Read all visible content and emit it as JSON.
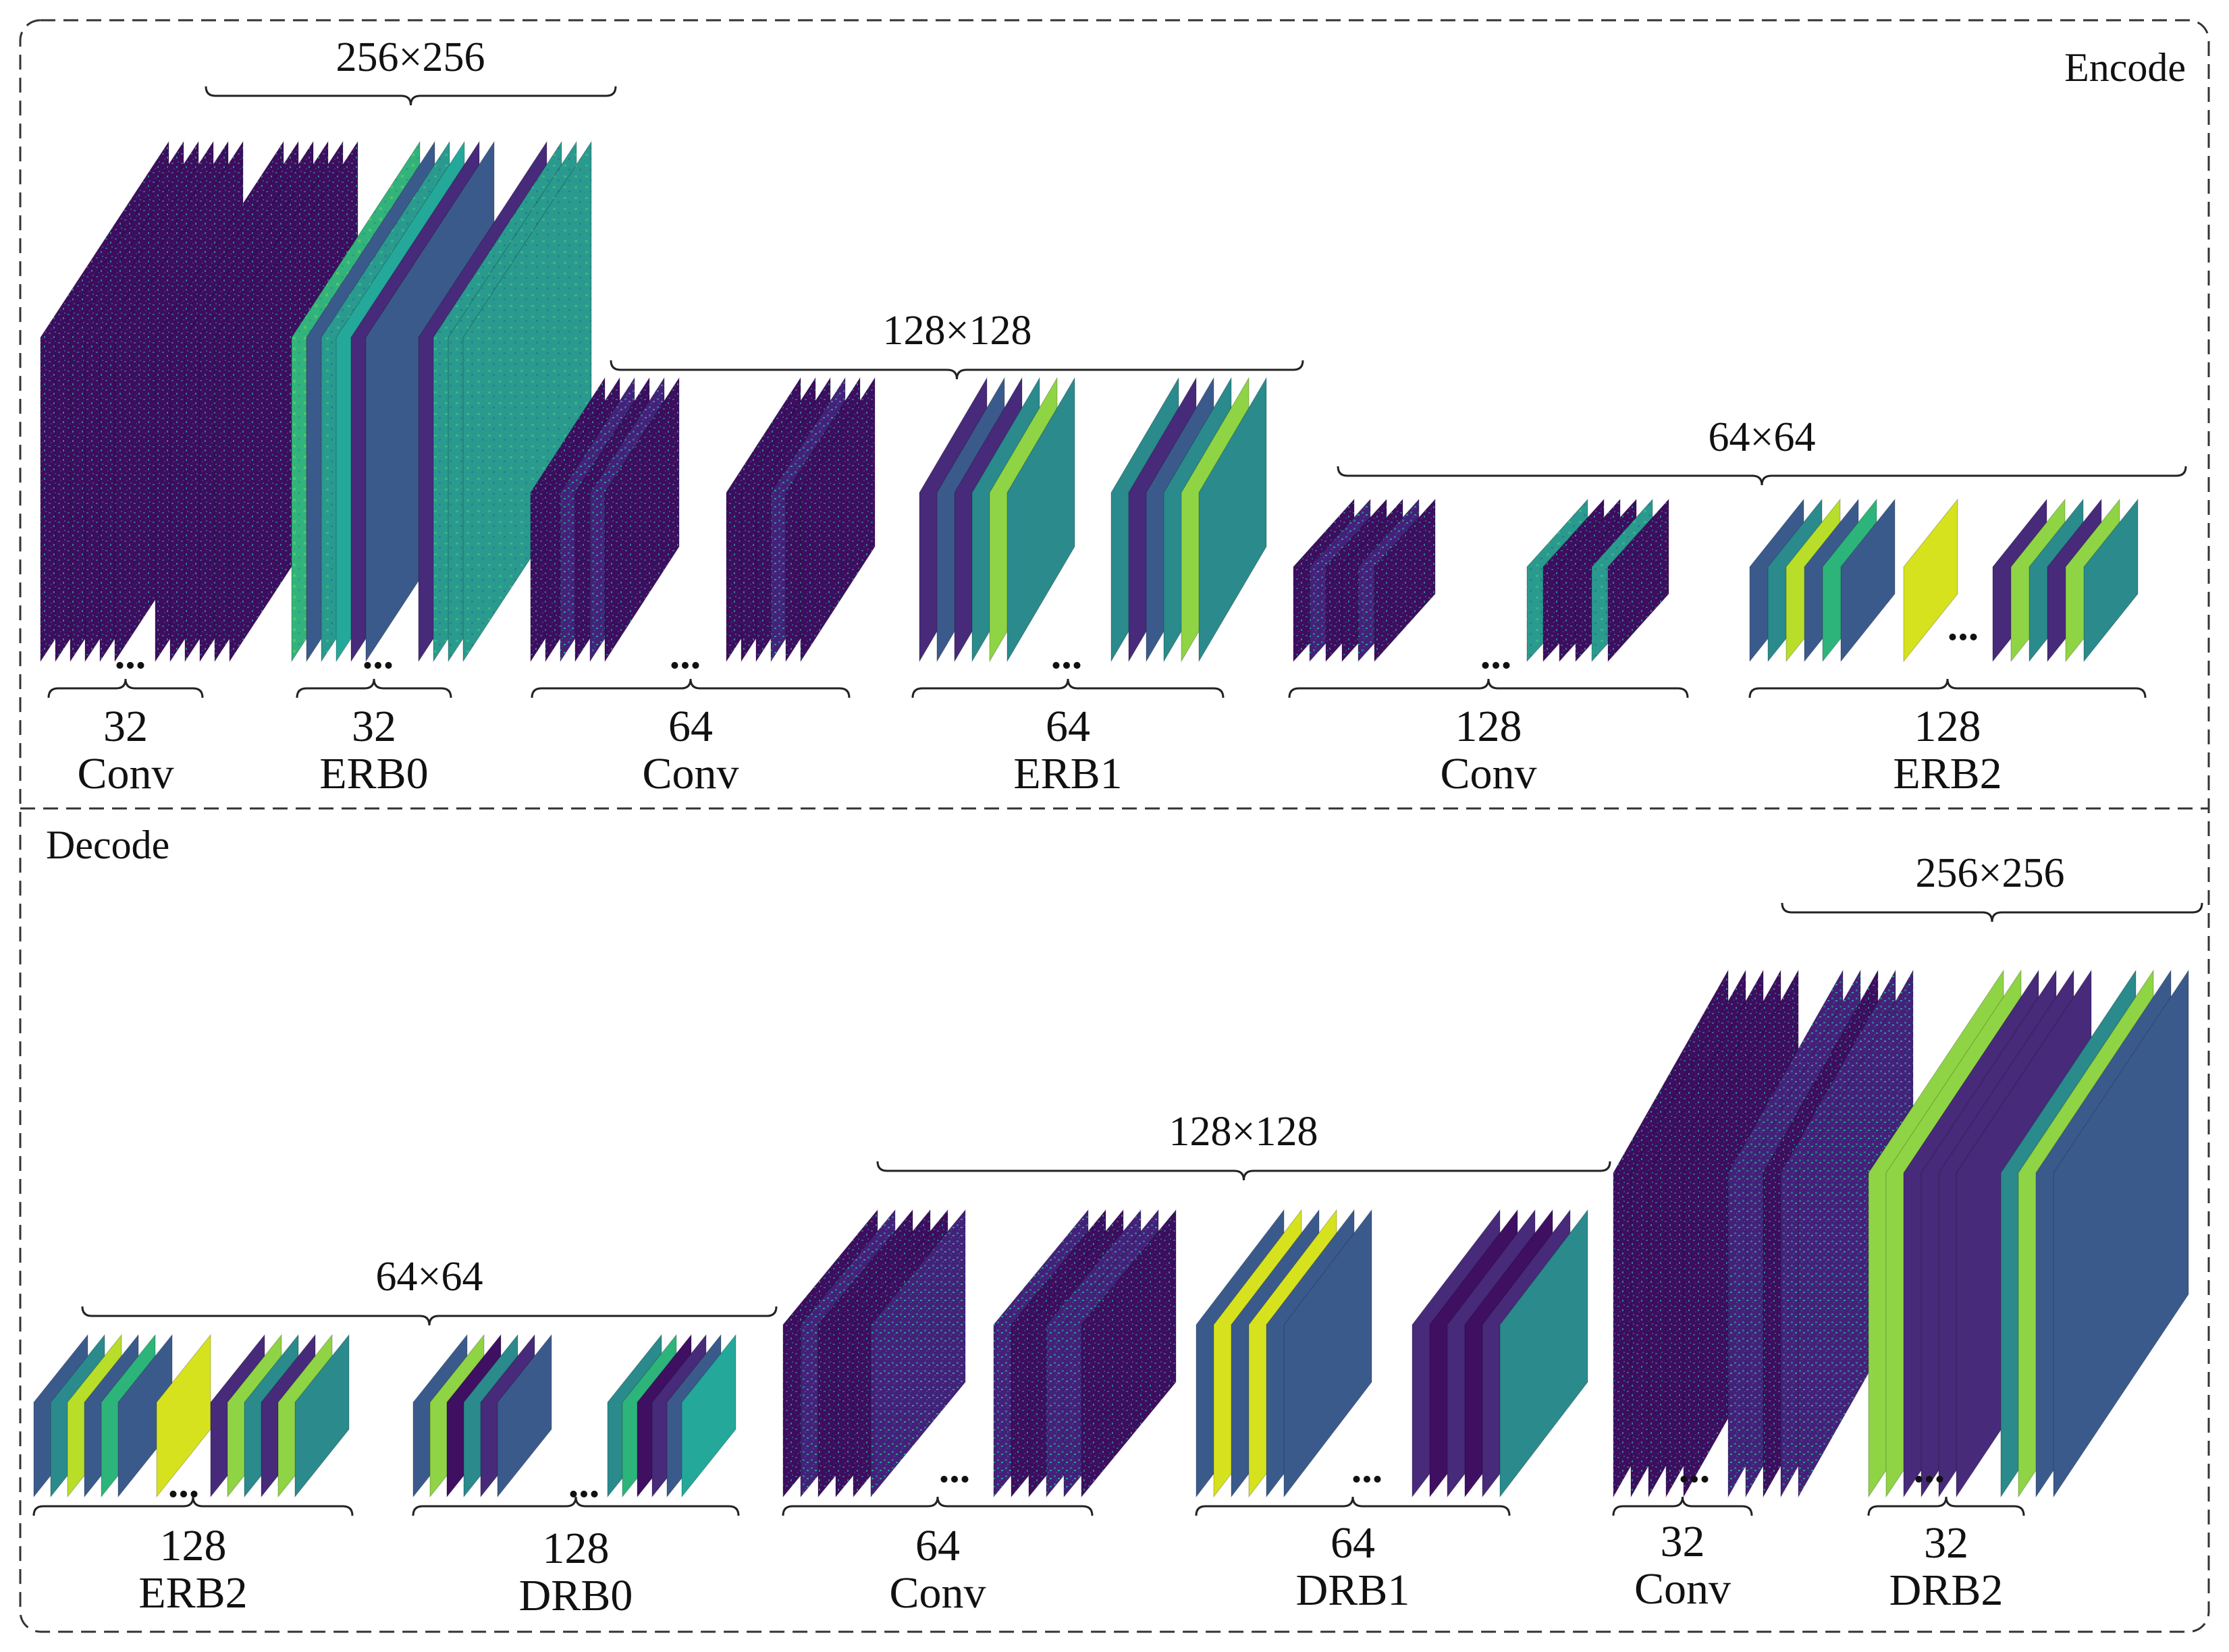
{
  "colors": {
    "dark": "#3f0f62",
    "purple": "#472a79",
    "blue": "#3b5a8c",
    "teal": "#2a8a8c",
    "green": "#2db47a",
    "lime": "#b8de2a",
    "yellowgreen": "#d7e21f",
    "lightgreen": "#8fd444",
    "seafoam": "#24a89a"
  },
  "sections": {
    "encode": "Encode",
    "decode": "Decode"
  },
  "encode": {
    "resolutions": [
      "256×256",
      "128×128",
      "64×64"
    ],
    "blocks": [
      {
        "count": "32",
        "name": "Conv"
      },
      {
        "count": "32",
        "name": "ERB0"
      },
      {
        "count": "64",
        "name": "Conv"
      },
      {
        "count": "64",
        "name": "ERB1"
      },
      {
        "count": "128",
        "name": "Conv"
      },
      {
        "count": "128",
        "name": "ERB2"
      }
    ]
  },
  "decode": {
    "resolutions": [
      "64×64",
      "128×128",
      "256×256"
    ],
    "blocks": [
      {
        "count": "128",
        "name": "ERB2"
      },
      {
        "count": "128",
        "name": "DRB0"
      },
      {
        "count": "64",
        "name": "Conv"
      },
      {
        "count": "64",
        "name": "DRB1"
      },
      {
        "count": "32",
        "name": "Conv"
      },
      {
        "count": "32",
        "name": "DRB2"
      }
    ]
  },
  "ellipsis": "..."
}
